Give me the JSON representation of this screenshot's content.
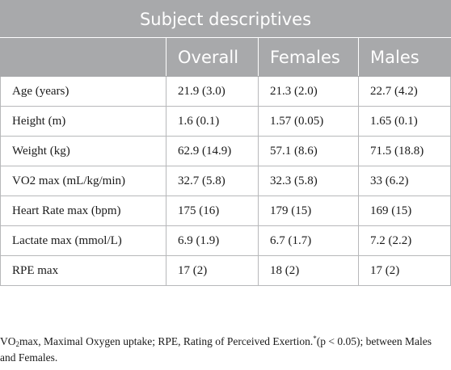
{
  "table": {
    "title": "Subject descriptives",
    "columns": [
      "",
      "Overall",
      "Females",
      "Males"
    ],
    "rows": [
      [
        "Age (years)",
        "21.9 (3.0)",
        "21.3 (2.0)",
        "22.7 (4.2)"
      ],
      [
        "Height (m)",
        "1.6 (0.1)",
        "1.57 (0.05)",
        "1.65 (0.1)"
      ],
      [
        "Weight (kg)",
        "62.9 (14.9)",
        "57.1 (8.6)",
        "71.5 (18.8)"
      ],
      [
        "VO2 max (mL/kg/min)",
        "32.7 (5.8)",
        "32.3 (5.8)",
        "33 (6.2)"
      ],
      [
        "Heart Rate max (bpm)",
        "175 (16)",
        "179 (15)",
        "169 (15)"
      ],
      [
        "Lactate max (mmol/L)",
        "6.9 (1.9)",
        "6.7 (1.7)",
        "7.2 (2.2)"
      ],
      [
        "RPE max",
        "17 (2)",
        "18 (2)",
        "17 (2)"
      ]
    ]
  },
  "footnote": {
    "vo": "VO",
    "vo_sub": "2",
    "text_1": "max, Maximal Oxygen uptake; RPE, Rating of Perceived Exertion.",
    "marker": "*",
    "text_2": "(p < 0.05); between Males and Females."
  },
  "colors": {
    "header_bg": "#a8a9ab",
    "header_text": "#ffffff",
    "grid_line": "#b7b8ba"
  }
}
